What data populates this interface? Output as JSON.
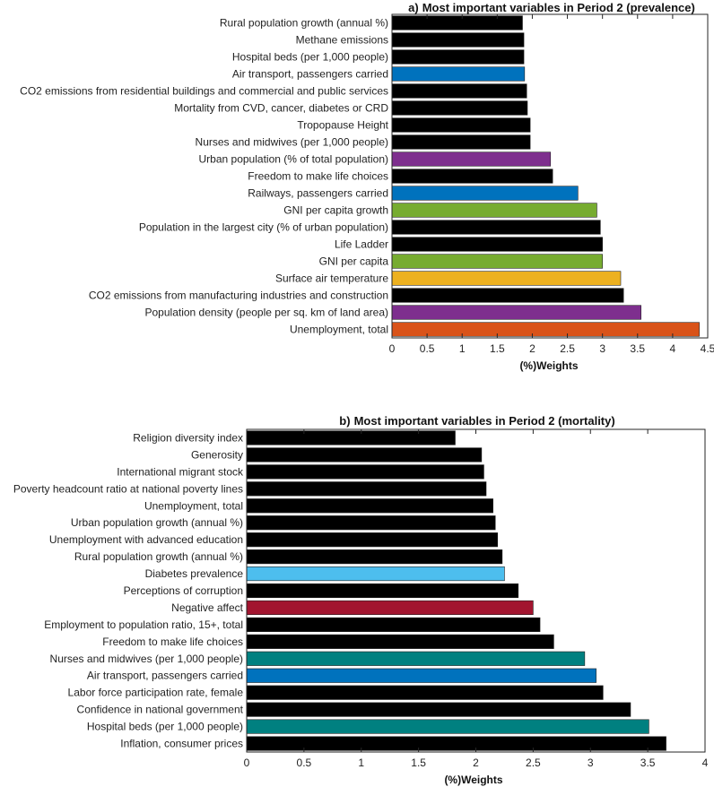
{
  "chart_data": [
    {
      "type": "bar",
      "orientation": "horizontal",
      "panel_label": "a)",
      "title": "Most important variables in Period 2 (prevalence)",
      "xlabel": "(%)Weights",
      "ylabel": "",
      "xlim": [
        0,
        4.5
      ],
      "xticks": [
        0,
        0.5,
        1,
        1.5,
        2,
        2.5,
        3,
        3.5,
        4,
        4.5
      ],
      "xtick_labels": [
        "0",
        "0.5",
        "1",
        "1.5",
        "2",
        "2.5",
        "3",
        "3.5",
        "4",
        "4.5"
      ],
      "grid": false,
      "categories": [
        "Rural population growth (annual %)",
        "Methane emissions",
        "Hospital beds (per 1,000 people)",
        "Air transport, passengers carried",
        "CO2 emissions from residential buildings and commercial and public services",
        "Mortality from CVD, cancer, diabetes or CRD",
        "Tropopause Height",
        "Nurses and midwives (per 1,000 people)",
        "Urban population (% of total population)",
        "Freedom to make life choices",
        "Railways, passengers carried",
        "GNI per capita growth",
        "Population in the largest city (% of urban population)",
        "Life Ladder",
        "GNI per capita",
        "Surface air temperature",
        "CO2 emissions from manufacturing industries and construction",
        "Population density (people per sq. km of land area)",
        "Unemployment, total"
      ],
      "values": [
        1.86,
        1.88,
        1.88,
        1.89,
        1.92,
        1.93,
        1.97,
        1.97,
        2.26,
        2.29,
        2.65,
        2.92,
        2.97,
        3.0,
        3.0,
        3.26,
        3.3,
        3.55,
        4.38
      ],
      "colors": [
        "#000000",
        "#000000",
        "#000000",
        "#0072BD",
        "#000000",
        "#000000",
        "#000000",
        "#000000",
        "#7E2F8E",
        "#000000",
        "#0072BD",
        "#77AC30",
        "#000000",
        "#000000",
        "#77AC30",
        "#EDB120",
        "#000000",
        "#7E2F8E",
        "#D95319"
      ]
    },
    {
      "type": "bar",
      "orientation": "horizontal",
      "panel_label": "b)",
      "title": "Most important variables in Period 2 (mortality)",
      "xlabel": "(%)Weights",
      "ylabel": "",
      "xlim": [
        0,
        4
      ],
      "xticks": [
        0,
        0.5,
        1,
        1.5,
        2,
        2.5,
        3,
        3.5,
        4
      ],
      "xtick_labels": [
        "0",
        "0.5",
        "1",
        "1.5",
        "2",
        "2.5",
        "3",
        "3.5",
        "4"
      ],
      "grid": false,
      "categories": [
        "Religion diversity index",
        "Generosity",
        "International migrant stock",
        "Poverty headcount ratio at national poverty lines",
        "Unemployment, total",
        "Urban population growth (annual %)",
        "Unemployment with advanced education",
        "Rural population growth (annual %)",
        "Diabetes prevalence",
        "Perceptions of corruption",
        "Negative affect",
        "Employment to population ratio, 15+, total",
        "Freedom to make life choices",
        "Nurses and midwives (per 1,000 people)",
        "Air transport, passengers carried",
        "Labor force participation rate, female",
        "Confidence in national government",
        "Hospital beds (per 1,000 people)",
        "Inflation, consumer prices"
      ],
      "values": [
        1.82,
        2.05,
        2.07,
        2.09,
        2.15,
        2.17,
        2.19,
        2.23,
        2.25,
        2.37,
        2.5,
        2.56,
        2.68,
        2.95,
        3.05,
        3.11,
        3.35,
        3.51,
        3.66
      ],
      "colors": [
        "#000000",
        "#000000",
        "#000000",
        "#000000",
        "#000000",
        "#000000",
        "#000000",
        "#000000",
        "#4DBEEE",
        "#000000",
        "#A2142F",
        "#000000",
        "#000000",
        "#008080",
        "#0072BD",
        "#000000",
        "#000000",
        "#008080",
        "#000000"
      ]
    }
  ]
}
